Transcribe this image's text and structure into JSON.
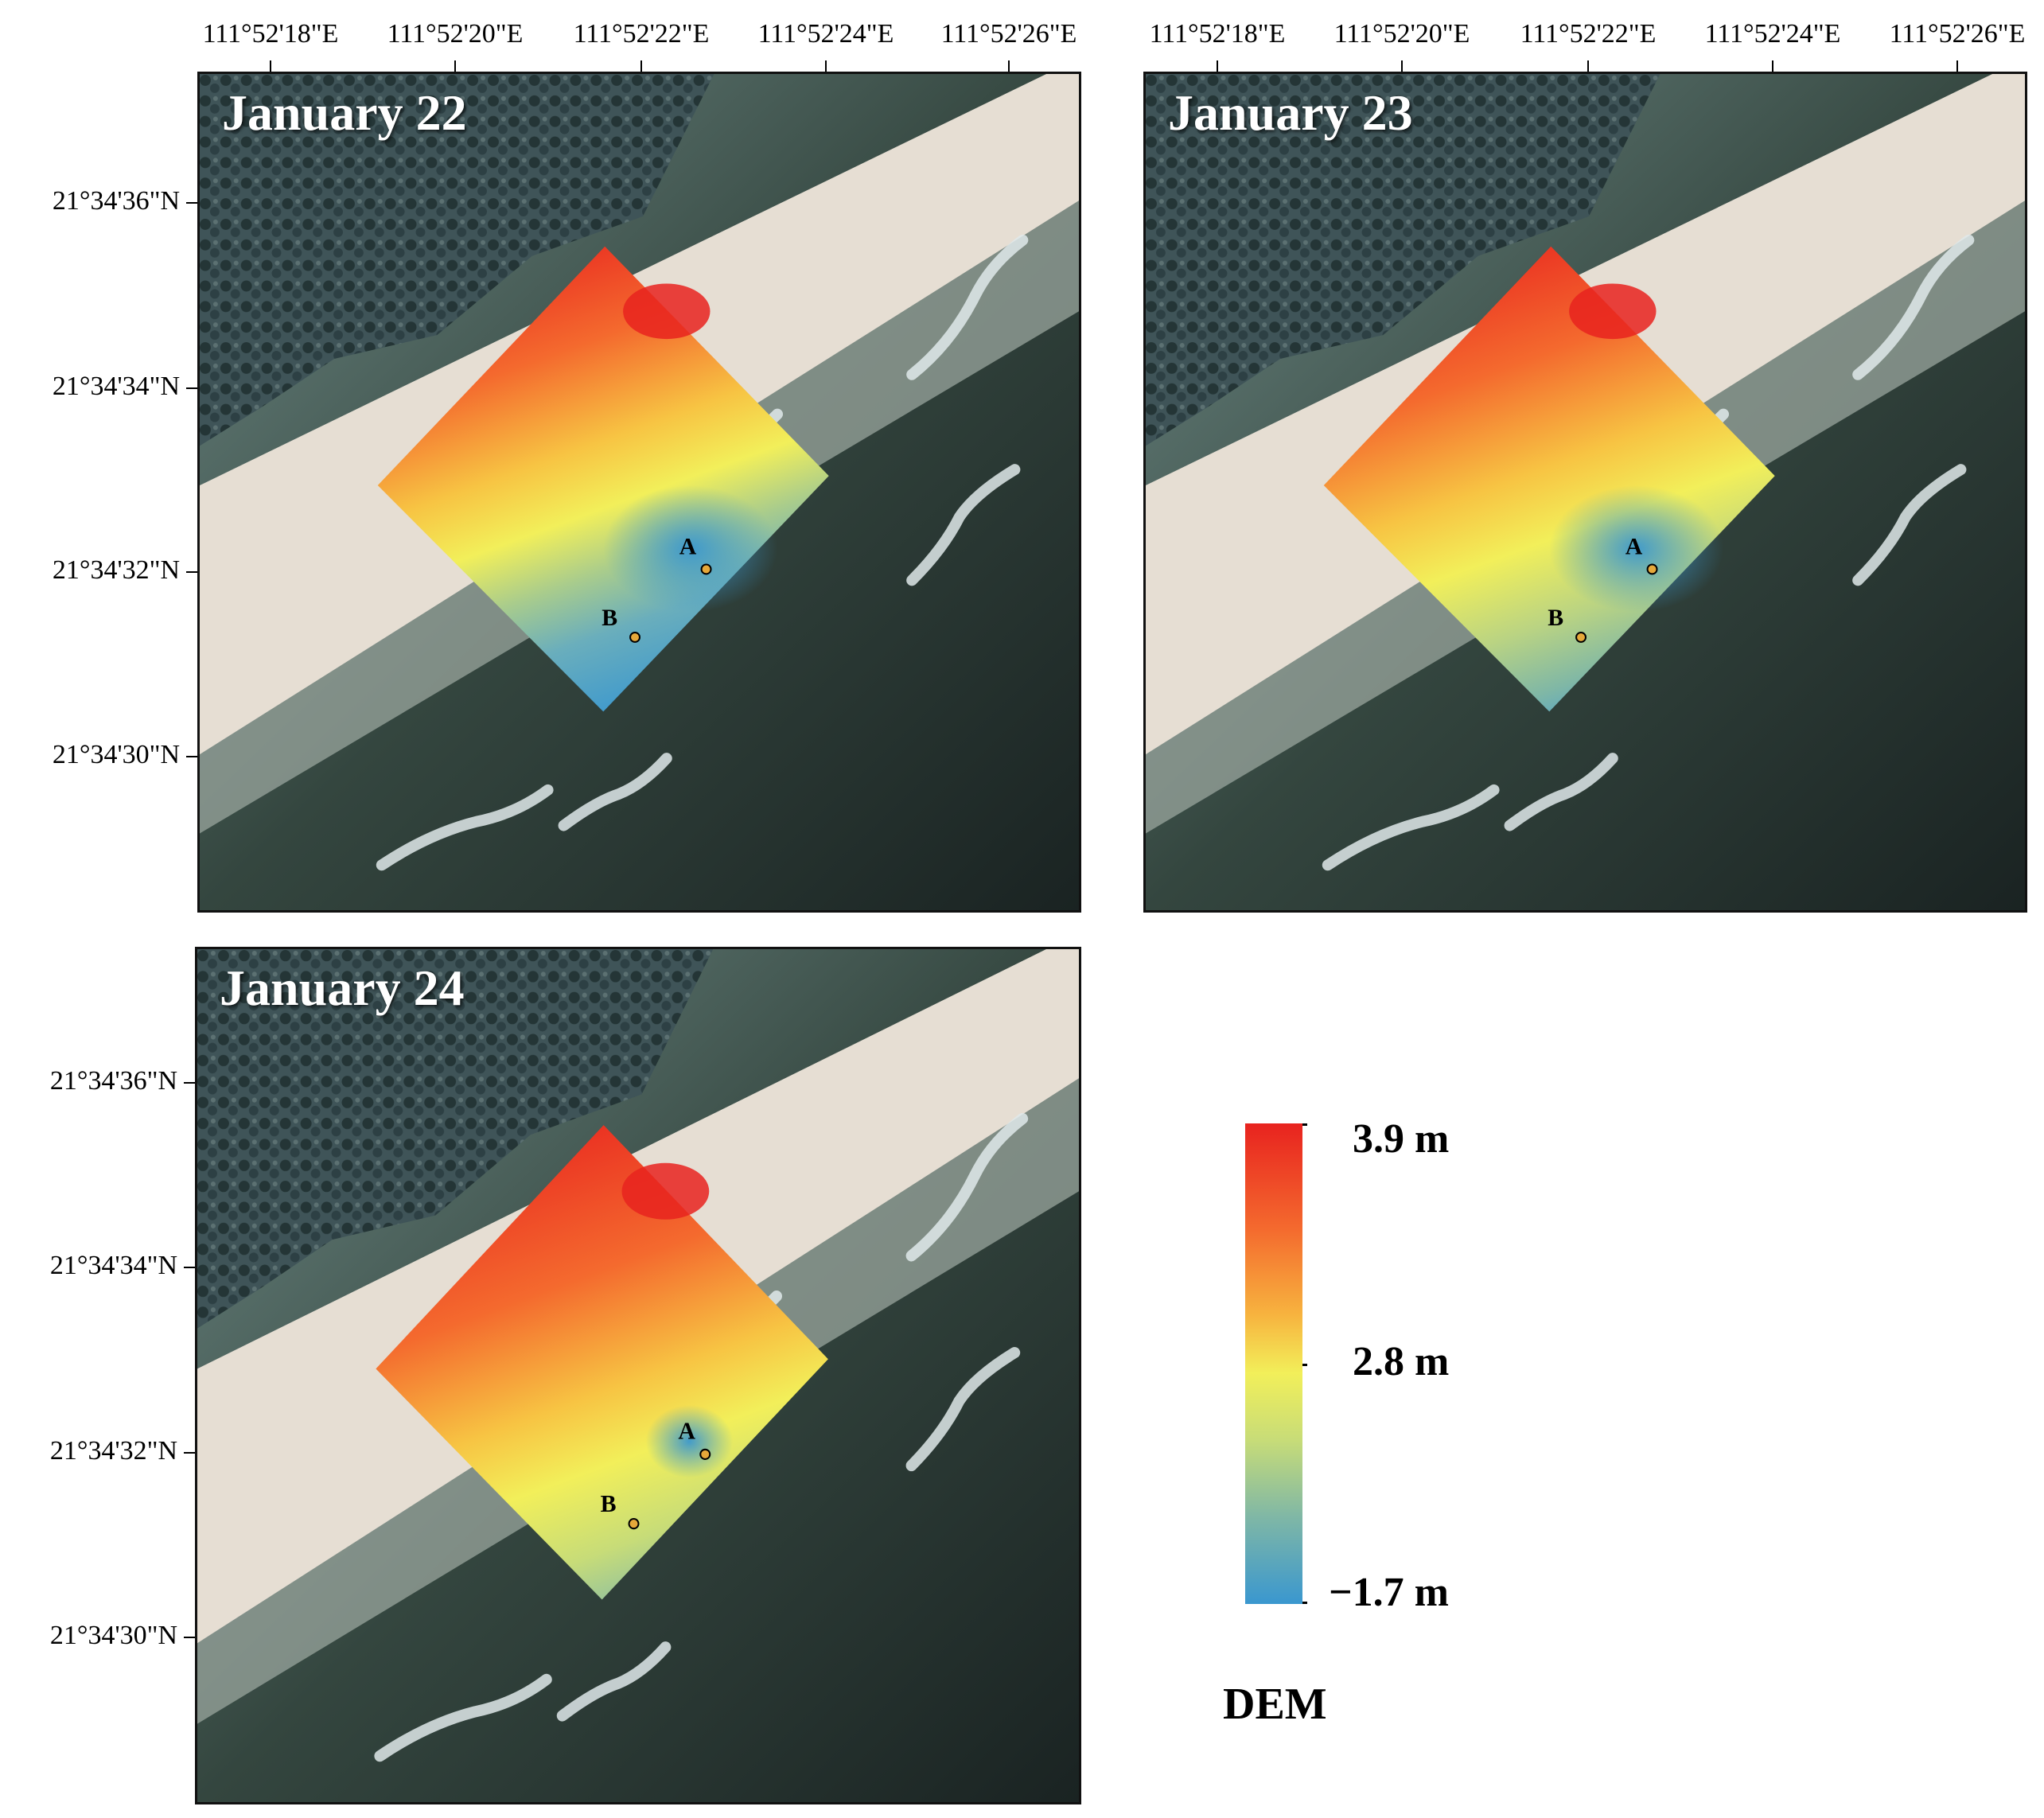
{
  "x_ticks": [
    "111°52'18\"E",
    "111°52'20\"E",
    "111°52'22\"E",
    "111°52'24\"E",
    "111°52'26\"E"
  ],
  "y_ticks": [
    "21°34'36\"N",
    "21°34'34\"N",
    "21°34'32\"N",
    "21°34'30\"N"
  ],
  "panels": [
    {
      "title": "January 22",
      "point_a": "A",
      "point_b": "B",
      "dem_state": "low",
      "survey_zone": "high"
    },
    {
      "title": "January 23",
      "point_a": "A",
      "point_b": "B",
      "dem_state": "mid",
      "survey_zone": "high"
    },
    {
      "title": "January 24",
      "point_a": "A",
      "point_b": "B",
      "dem_state": "high",
      "survey_zone": "high"
    }
  ],
  "legend": {
    "title": "DEM",
    "max_label": "3.9 m",
    "mid_label": "2.8 m",
    "min_label": "−1.7 m",
    "colors": {
      "high": "#e8231f",
      "mid": "#f2ef5a",
      "low": "#3a97cf"
    }
  }
}
